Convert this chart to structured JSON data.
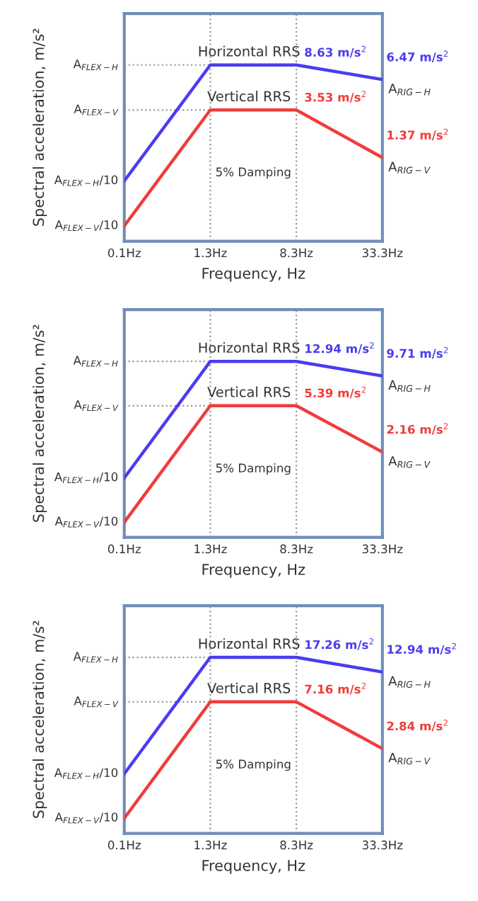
{
  "chart_data": [
    {
      "type": "line",
      "categories": [
        "0.1Hz",
        "1.3Hz",
        "8.3Hz",
        "33.3Hz"
      ],
      "ylabel": "Spectral acceleration, m/s²",
      "xlabel": "Frequency, Hz",
      "log": "y",
      "ylim": [
        0.26,
        24
      ],
      "grid": "x",
      "line_style": "solid",
      "marker": "none",
      "series": [
        {
          "name": "Horizontal RRS",
          "color": "#4b3cf0",
          "values": [
            0.863,
            8.63,
            8.63,
            6.47
          ],
          "value_labels": [
            null,
            null,
            "8.63 m/s$^{2}$",
            "6.47 m/s$^{2}$"
          ]
        },
        {
          "name": "Vertical RRS",
          "color": "#f03c3c",
          "values": [
            0.353,
            3.53,
            3.53,
            1.37
          ],
          "value_labels": [
            null,
            null,
            "3.53 m/s$^{2}$",
            "1.37 m/s$^{2}$"
          ]
        }
      ],
      "ref_lines": [
        {
          "axis": "y",
          "value": 8.63,
          "label": "A$_{FLEX−H}$",
          "color": "#999999",
          "line_style": "dotted"
        },
        {
          "axis": "y",
          "value": 3.53,
          "label": "A$_{FLEX−V}$",
          "color": "#999999",
          "line_style": "dotted"
        }
      ],
      "annotations": [
        "5% Damping",
        {
          "text": "A$_{RIG−H}$",
          "x": "33.3Hz",
          "y": 6.47
        },
        {
          "text": "A$_{RIG−V}$",
          "x": "33.3Hz",
          "y": 1.37
        },
        {
          "text": "A$_{FLEX−V}$/10",
          "x": "0.1Hz",
          "y": 0.353
        },
        {
          "text": "A$_{FLEX−H}$/10",
          "x": "0.1Hz",
          "y": 0.863
        }
      ]
    },
    {
      "type": "line",
      "categories": [
        "0.1Hz",
        "1.3Hz",
        "8.3Hz",
        "33.3Hz"
      ],
      "ylabel": "Spectral acceleration, m/s²",
      "xlabel": "Frequency, Hz",
      "log": "y",
      "ylim": [
        0.4,
        36
      ],
      "grid": "x",
      "line_style": "solid",
      "marker": "none",
      "series": [
        {
          "name": "Horizontal RRS",
          "color": "#4b3cf0",
          "values": [
            1.294,
            12.94,
            12.94,
            9.71
          ],
          "value_labels": [
            null,
            null,
            "12.94 m/s$^{2}$",
            "9.71 m/s$^{2}$"
          ]
        },
        {
          "name": "Vertical RRS",
          "color": "#f03c3c",
          "values": [
            0.539,
            5.39,
            5.39,
            2.16
          ],
          "value_labels": [
            null,
            null,
            "5.39 m/s$^{2}$",
            "2.16 m/s$^{2}$"
          ]
        }
      ],
      "ref_lines": [
        {
          "axis": "y",
          "value": 12.94,
          "label": "A$_{FLEX−H}$",
          "color": "#999999",
          "line_style": "dotted"
        },
        {
          "axis": "y",
          "value": 5.39,
          "label": "A$_{FLEX−V}$",
          "color": "#999999",
          "line_style": "dotted"
        }
      ],
      "annotations": [
        "5% Damping",
        {
          "text": "A$_{RIG−H}$",
          "x": "33.3Hz",
          "y": 9.71
        },
        {
          "text": "A$_{RIG−V}$",
          "x": "33.3Hz",
          "y": 2.16
        },
        {
          "text": "A$_{FLEX−V}$/10",
          "x": "0.1Hz",
          "y": 0.539
        },
        {
          "text": "A$_{FLEX−H}$/10",
          "x": "0.1Hz",
          "y": 1.294
        }
      ]
    },
    {
      "type": "line",
      "categories": [
        "0.1Hz",
        "1.3Hz",
        "8.3Hz",
        "33.3Hz"
      ],
      "ylabel": "Spectral acceleration, m/s²",
      "xlabel": "Frequency, Hz",
      "log": "y",
      "ylim": [
        0.53,
        48
      ],
      "grid": "x",
      "line_style": "solid",
      "marker": "none",
      "series": [
        {
          "name": "Horizontal RRS",
          "color": "#4b3cf0",
          "values": [
            1.726,
            17.26,
            17.26,
            12.94
          ],
          "value_labels": [
            null,
            null,
            "17.26 m/s$^{2}$",
            "12.94 m/s$^{2}$"
          ]
        },
        {
          "name": "Vertical RRS",
          "color": "#f03c3c",
          "values": [
            0.716,
            7.16,
            7.16,
            2.84
          ],
          "value_labels": [
            null,
            null,
            "7.16 m/s$^{2}$",
            "2.84 m/s$^{2}$"
          ]
        }
      ],
      "ref_lines": [
        {
          "axis": "y",
          "value": 17.26,
          "label": "A$_{FLEX−H}$",
          "color": "#999999",
          "line_style": "dotted"
        },
        {
          "axis": "y",
          "value": 7.16,
          "label": "A$_{FLEX−V}$",
          "color": "#999999",
          "line_style": "dotted"
        }
      ],
      "annotations": [
        "5% Damping",
        {
          "text": "A$_{RIG−H}$",
          "x": "33.3Hz",
          "y": 12.94
        },
        {
          "text": "A$_{RIG−V}$",
          "x": "33.3Hz",
          "y": 2.84
        },
        {
          "text": "A$_{FLEX−V}$/10",
          "x": "0.1Hz",
          "y": 0.716
        },
        {
          "text": "A$_{FLEX−H}$/10",
          "x": "0.1Hz",
          "y": 1.726
        }
      ]
    }
  ]
}
